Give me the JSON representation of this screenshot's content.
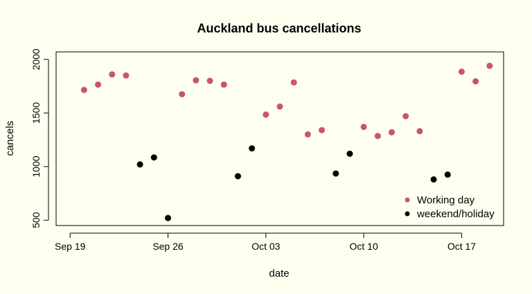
{
  "chart_data": {
    "type": "scatter",
    "title": "Auckland bus cancellations",
    "xlabel": "date",
    "ylabel": "cancels",
    "xlim": [
      "2021-09-18",
      "2021-10-20"
    ],
    "ylim": [
      450,
      2070
    ],
    "x_ticks": [
      {
        "date": "2021-09-19",
        "label": "Sep 19"
      },
      {
        "date": "2021-09-26",
        "label": "Sep 26"
      },
      {
        "date": "2021-10-03",
        "label": "Oct 03"
      },
      {
        "date": "2021-10-10",
        "label": "Oct 10"
      },
      {
        "date": "2021-10-17",
        "label": "Oct 17"
      }
    ],
    "y_ticks": [
      500,
      1000,
      1500,
      2000
    ],
    "grid": false,
    "legend_position": "bottom-right",
    "series": [
      {
        "name": "Working day",
        "color": "#c8556a",
        "points": [
          {
            "x": "2021-09-20",
            "y": 1715
          },
          {
            "x": "2021-09-21",
            "y": 1765
          },
          {
            "x": "2021-09-22",
            "y": 1860
          },
          {
            "x": "2021-09-23",
            "y": 1850
          },
          {
            "x": "2021-09-27",
            "y": 1675
          },
          {
            "x": "2021-09-28",
            "y": 1805
          },
          {
            "x": "2021-09-29",
            "y": 1800
          },
          {
            "x": "2021-09-30",
            "y": 1765
          },
          {
            "x": "2021-10-03",
            "y": 1485
          },
          {
            "x": "2021-10-04",
            "y": 1560
          },
          {
            "x": "2021-10-05",
            "y": 1785
          },
          {
            "x": "2021-10-06",
            "y": 1300
          },
          {
            "x": "2021-10-07",
            "y": 1340
          },
          {
            "x": "2021-10-10",
            "y": 1370
          },
          {
            "x": "2021-10-11",
            "y": 1285
          },
          {
            "x": "2021-10-12",
            "y": 1320
          },
          {
            "x": "2021-10-13",
            "y": 1470
          },
          {
            "x": "2021-10-14",
            "y": 1330
          },
          {
            "x": "2021-10-17",
            "y": 1885
          },
          {
            "x": "2021-10-18",
            "y": 1795
          },
          {
            "x": "2021-10-19",
            "y": 1940
          }
        ]
      },
      {
        "name": "weekend/holiday",
        "color": "#000000",
        "points": [
          {
            "x": "2021-09-24",
            "y": 1020
          },
          {
            "x": "2021-09-25",
            "y": 1085
          },
          {
            "x": "2021-09-26",
            "y": 520
          },
          {
            "x": "2021-10-01",
            "y": 910
          },
          {
            "x": "2021-10-02",
            "y": 1170
          },
          {
            "x": "2021-10-08",
            "y": 935
          },
          {
            "x": "2021-10-09",
            "y": 1120
          },
          {
            "x": "2021-10-15",
            "y": 880
          },
          {
            "x": "2021-10-16",
            "y": 925
          }
        ]
      }
    ]
  }
}
